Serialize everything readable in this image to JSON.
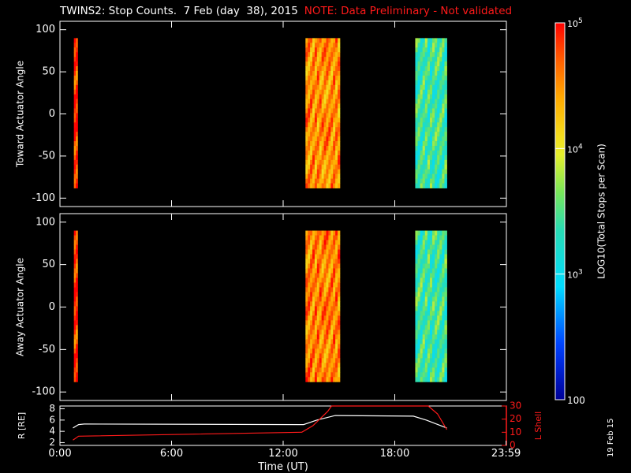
{
  "title": "TWINS2: Stop Counts.  7 Feb (day  38), 2015",
  "note": "NOTE: Data Preliminary - Not validated",
  "side_date": "19 Feb 15",
  "colors": {
    "background": "#000000",
    "axes": "#ffffff",
    "note": "#ff1a1a",
    "r_line": "#ffffff",
    "lshell_line": "#ff1a1a"
  },
  "chart_data": [
    {
      "type": "heatmap",
      "name": "toward",
      "ylabel": "Toward Actuator Angle",
      "ylim": [
        -110,
        110
      ],
      "yticks": [
        100,
        50,
        0,
        -50,
        -100
      ],
      "xlim": [
        0,
        24
      ],
      "blocks": [
        {
          "t_start": 0.75,
          "t_end": 0.95,
          "angle_min": -88,
          "angle_max": 90,
          "mean_log_counts": 4.85
        },
        {
          "t_start": 13.2,
          "t_end": 15.05,
          "angle_min": -88,
          "angle_max": 90,
          "mean_log_counts": 4.5
        },
        {
          "t_start": 19.1,
          "t_end": 20.8,
          "angle_min": -88,
          "angle_max": 90,
          "mean_log_counts": 3.4
        }
      ]
    },
    {
      "type": "heatmap",
      "name": "away",
      "ylabel": "Away Actuator Angle",
      "ylim": [
        -110,
        110
      ],
      "yticks": [
        100,
        50,
        0,
        -50,
        -100
      ],
      "xlim": [
        0,
        24
      ],
      "blocks": [
        {
          "t_start": 0.75,
          "t_end": 0.95,
          "angle_min": -88,
          "angle_max": 90,
          "mean_log_counts": 4.85
        },
        {
          "t_start": 13.2,
          "t_end": 15.05,
          "angle_min": -88,
          "angle_max": 90,
          "mean_log_counts": 4.55
        },
        {
          "t_start": 19.1,
          "t_end": 20.8,
          "angle_min": -88,
          "angle_max": 90,
          "mean_log_counts": 3.4
        }
      ]
    },
    {
      "type": "line",
      "name": "orbit",
      "ylabel": "R [RE]",
      "y2label": "L Shell",
      "xlabel": "Time (UT)",
      "xlim": [
        0,
        24
      ],
      "ylim": [
        1.5,
        8.5
      ],
      "yticks": [
        8,
        6,
        4,
        2
      ],
      "y2lim": [
        0,
        30
      ],
      "y2ticks": [
        30,
        20,
        10,
        0
      ],
      "xticks": [
        0,
        6,
        12,
        18,
        23.983
      ],
      "xticklabels": [
        "0:00",
        "6:00",
        "12:00",
        "18:00",
        "23:59"
      ],
      "series": [
        {
          "axis": "left",
          "x": [
            0.7,
            1.0,
            1.3,
            13.1,
            13.8,
            14.8,
            19.0,
            19.7,
            20.8
          ],
          "y": [
            4.6,
            5.2,
            5.3,
            5.2,
            6.0,
            6.8,
            6.7,
            6.0,
            4.6
          ]
        },
        {
          "axis": "right",
          "x": [
            0.7,
            1.0,
            13.0,
            13.6,
            14.4,
            14.6,
            19.8,
            20.3,
            20.8
          ],
          "y": [
            4.0,
            7.0,
            10.0,
            15.0,
            26.0,
            30.0,
            30.0,
            24.0,
            12.0
          ]
        }
      ]
    }
  ],
  "colorbar": {
    "label": "LOG10(Total Stops per Scan)",
    "min_log": 2,
    "max_log": 5,
    "tick_labels": [
      {
        "log": 5,
        "text": "10^5"
      },
      {
        "log": 4,
        "text": "10^4"
      },
      {
        "log": 3,
        "text": "10^3"
      },
      {
        "log": 2,
        "text": "100"
      }
    ]
  }
}
